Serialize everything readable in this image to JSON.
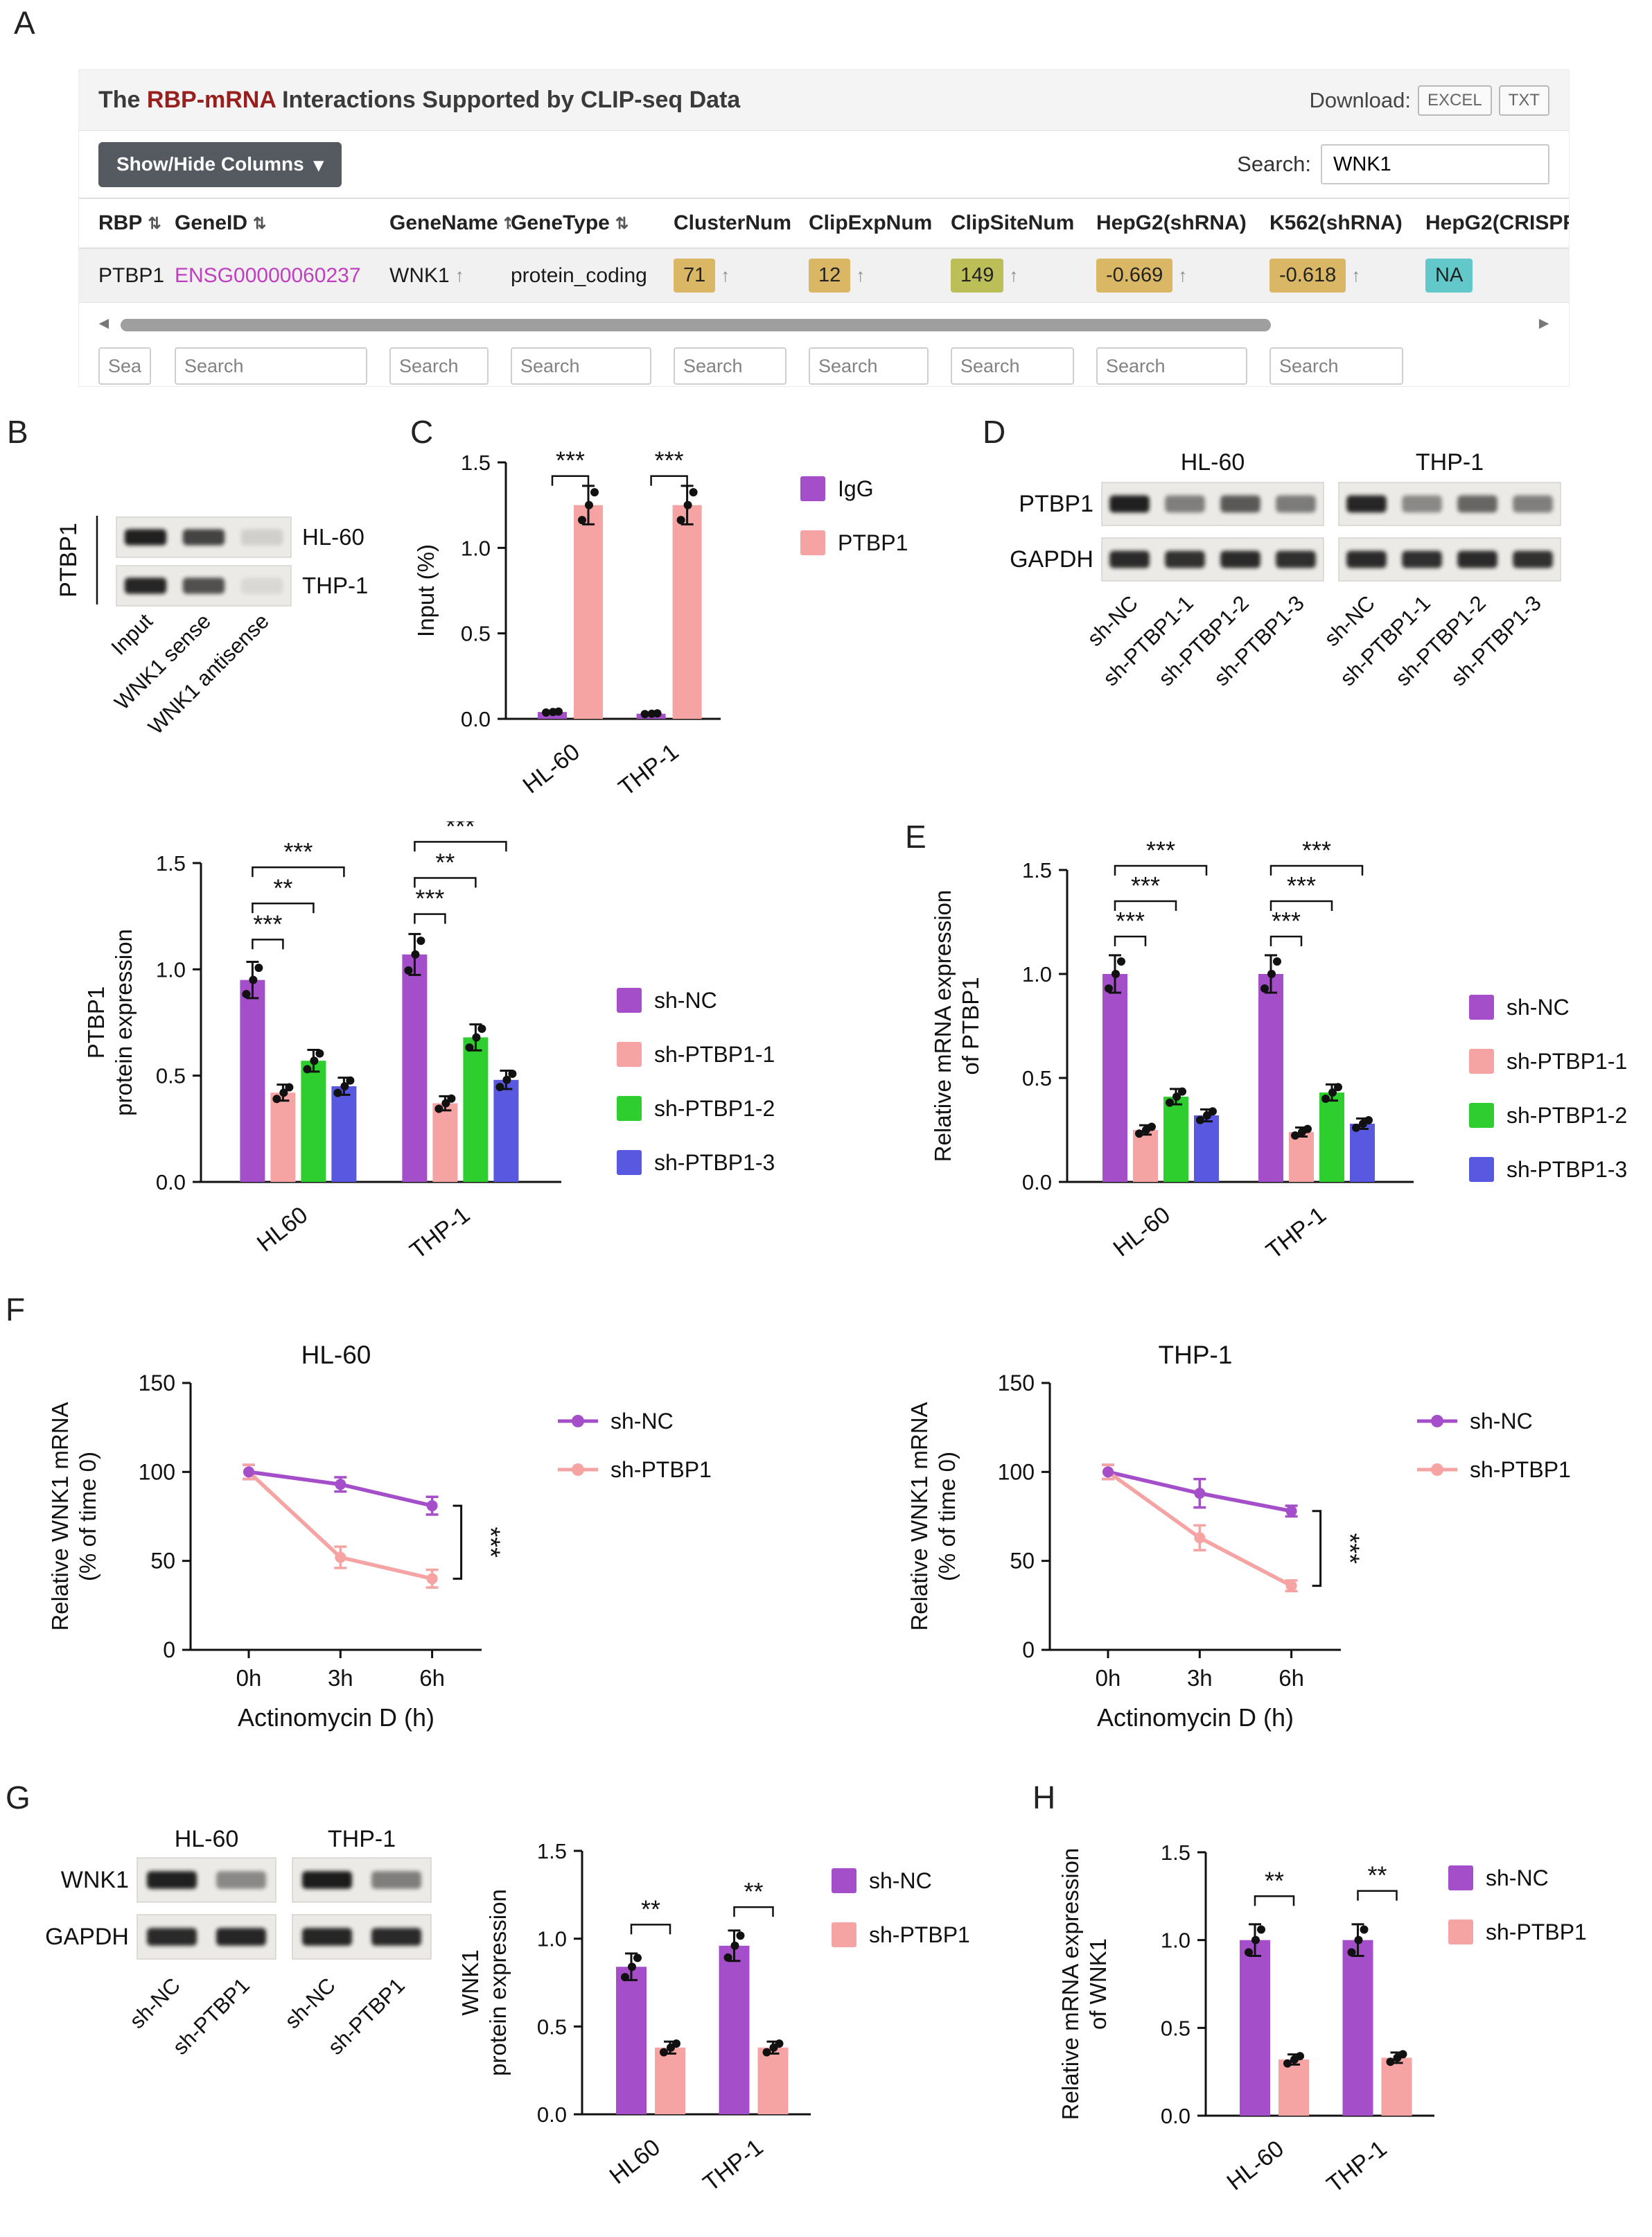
{
  "panel_labels": {
    "A": "A",
    "B": "B",
    "C": "C",
    "D": "D",
    "E": "E",
    "F": "F",
    "G": "G",
    "H": "H"
  },
  "panelA": {
    "title_pre": "The ",
    "title_em": "RBP-mRNA",
    "title_post": " Interactions Supported by CLIP-seq Data",
    "download_label": "Download:",
    "download_excel": "EXCEL",
    "download_txt": "TXT",
    "show_hide_label": "Show/Hide Columns",
    "caret": "▾",
    "search_label": "Search:",
    "search_value": "WNK1",
    "search_placeholder": "Search",
    "sort_up": "↑",
    "scroll_left": "◄",
    "scroll_right": "►",
    "columns": [
      {
        "label": "RBP",
        "sort": "⇅"
      },
      {
        "label": "GeneID",
        "sort": "⇅"
      },
      {
        "label": "GeneName",
        "sort": "⇅"
      },
      {
        "label": "GeneType",
        "sort": "⇅"
      },
      {
        "label": "ClusterNum",
        "sort": ""
      },
      {
        "label": "ClipExpNum",
        "sort": ""
      },
      {
        "label": "ClipSiteNum",
        "sort": ""
      },
      {
        "label": "HepG2(shRNA)",
        "sort": ""
      },
      {
        "label": "K562(shRNA)",
        "sort": ""
      },
      {
        "label": "HepG2(CRISPR",
        "sort": ""
      }
    ],
    "row": {
      "rbp": "PTBP1",
      "gene_id": "ENSG00000060237",
      "gene_name": "WNK1",
      "gene_type": "protein_coding",
      "cluster_num": "71",
      "clip_exp_num": "12",
      "clip_site_num": "149",
      "hepg2_shrna": "-0.669",
      "k562_shrna": "-0.618",
      "hepg2_crispr": "NA"
    }
  },
  "blots": {
    "blotB": {
      "side_label": "PTBP1",
      "strip_labels": [
        "HL-60",
        "THP-1"
      ],
      "lane_labels": [
        "Input",
        "WNK1 sense",
        "WNK1 antisense"
      ]
    },
    "blotD": {
      "headers": [
        "HL-60",
        "THP-1"
      ],
      "row_labels": [
        "PTBP1",
        "GAPDH"
      ],
      "lane_labels": [
        "sh-NC",
        "sh-PTBP1-1",
        "sh-PTBP1-2",
        "sh-PTBP1-3"
      ]
    },
    "blotG": {
      "headers": [
        "HL-60",
        "THP-1"
      ],
      "row_labels": [
        "WNK1",
        "GAPDH"
      ],
      "lane_labels": [
        "sh-NC",
        "sh-PTBP1"
      ]
    }
  },
  "chart_data": [
    {
      "id": "chartB",
      "panel": "B",
      "type": "bar",
      "categories": [
        "HL60",
        "THP-1"
      ],
      "series": [
        {
          "name": "sh-NC",
          "color": "#a44fc9",
          "values": [
            0.95,
            1.07
          ]
        },
        {
          "name": "sh-PTBP1-1",
          "color": "#f5a3a3",
          "values": [
            0.42,
            0.37
          ]
        },
        {
          "name": "sh-PTBP1-2",
          "color": "#2fce2f",
          "values": [
            0.57,
            0.68
          ]
        },
        {
          "name": "sh-PTBP1-3",
          "color": "#5858e0",
          "values": [
            0.45,
            0.48
          ]
        }
      ],
      "ylabel_lines": [
        "PTBP1",
        "protein expression"
      ],
      "ylim": [
        0,
        1.5
      ],
      "yticks": [
        0,
        0.5,
        1,
        1.5
      ],
      "sig": [
        {
          "g": 0,
          "a": 0,
          "b": 1,
          "y": 1.14,
          "label": "***"
        },
        {
          "g": 0,
          "a": 0,
          "b": 2,
          "y": 1.31,
          "label": "**"
        },
        {
          "g": 0,
          "a": 0,
          "b": 3,
          "y": 1.48,
          "label": "***"
        },
        {
          "g": 1,
          "a": 0,
          "b": 1,
          "y": 1.26,
          "label": "***"
        },
        {
          "g": 1,
          "a": 0,
          "b": 2,
          "y": 1.43,
          "label": "**"
        },
        {
          "g": 1,
          "a": 0,
          "b": 3,
          "y": 1.6,
          "label": "***"
        }
      ]
    },
    {
      "id": "chartC",
      "panel": "C",
      "type": "bar",
      "categories": [
        "HL-60",
        "THP-1"
      ],
      "series": [
        {
          "name": "IgG",
          "color": "#a44fc9",
          "values": [
            0.04,
            0.03
          ]
        },
        {
          "name": "PTBP1",
          "color": "#f5a3a3",
          "values": [
            1.25,
            1.25
          ]
        }
      ],
      "ylabel_lines": [
        "Input (%)"
      ],
      "ylim": [
        0,
        1.5
      ],
      "yticks": [
        0,
        0.5,
        1,
        1.5
      ],
      "sig": [
        {
          "g": 0,
          "a": 0,
          "b": 1,
          "y": 1.42,
          "label": "***"
        },
        {
          "g": 1,
          "a": 0,
          "b": 1,
          "y": 1.42,
          "label": "***"
        }
      ]
    },
    {
      "id": "chartE",
      "panel": "E",
      "type": "bar",
      "categories": [
        "HL-60",
        "THP-1"
      ],
      "series": [
        {
          "name": "sh-NC",
          "color": "#a44fc9",
          "values": [
            1.0,
            1.0
          ]
        },
        {
          "name": "sh-PTBP1-1",
          "color": "#f5a3a3",
          "values": [
            0.25,
            0.24
          ]
        },
        {
          "name": "sh-PTBP1-2",
          "color": "#2fce2f",
          "values": [
            0.41,
            0.43
          ]
        },
        {
          "name": "sh-PTBP1-3",
          "color": "#5858e0",
          "values": [
            0.32,
            0.28
          ]
        }
      ],
      "ylabel_lines": [
        "Relative mRNA expression",
        "of PTBP1"
      ],
      "ylim": [
        0,
        1.5
      ],
      "yticks": [
        0,
        0.5,
        1,
        1.5
      ],
      "sig": [
        {
          "g": 0,
          "a": 0,
          "b": 1,
          "y": 1.18,
          "label": "***"
        },
        {
          "g": 0,
          "a": 0,
          "b": 2,
          "y": 1.35,
          "label": "***"
        },
        {
          "g": 0,
          "a": 0,
          "b": 3,
          "y": 1.52,
          "label": "***"
        },
        {
          "g": 1,
          "a": 0,
          "b": 1,
          "y": 1.18,
          "label": "***"
        },
        {
          "g": 1,
          "a": 0,
          "b": 2,
          "y": 1.35,
          "label": "***"
        },
        {
          "g": 1,
          "a": 0,
          "b": 3,
          "y": 1.52,
          "label": "***"
        }
      ]
    },
    {
      "id": "chartF1",
      "panel": "F",
      "type": "line",
      "title": "HL-60",
      "x": [
        "0h",
        "3h",
        "6h"
      ],
      "series": [
        {
          "name": "sh-NC",
          "color": "#a44fc9",
          "values": [
            100,
            93,
            81
          ],
          "err": [
            4,
            4,
            5
          ]
        },
        {
          "name": "sh-PTBP1",
          "color": "#f5a3a3",
          "values": [
            100,
            52,
            40
          ],
          "err": [
            4,
            6,
            5
          ]
        }
      ],
      "ylabel_lines": [
        "Relative WNK1 mRNA",
        "(% of time 0)"
      ],
      "xlabel": "Actinomycin D (h)",
      "ylim": [
        0,
        150
      ],
      "yticks": [
        0,
        50,
        100,
        150
      ],
      "sig": "***"
    },
    {
      "id": "chartF2",
      "panel": "F",
      "type": "line",
      "title": "THP-1",
      "x": [
        "0h",
        "3h",
        "6h"
      ],
      "series": [
        {
          "name": "sh-NC",
          "color": "#a44fc9",
          "values": [
            100,
            88,
            78
          ],
          "err": [
            4,
            8,
            3
          ]
        },
        {
          "name": "sh-PTBP1",
          "color": "#f5a3a3",
          "values": [
            100,
            63,
            36
          ],
          "err": [
            4,
            7,
            3
          ]
        }
      ],
      "ylabel_lines": [
        "Relative WNK1 mRNA",
        "(% of time 0)"
      ],
      "xlabel": "Actinomycin D (h)",
      "ylim": [
        0,
        150
      ],
      "yticks": [
        0,
        50,
        100,
        150
      ],
      "sig": "***"
    },
    {
      "id": "chartG",
      "panel": "G",
      "type": "bar",
      "categories": [
        "HL60",
        "THP-1"
      ],
      "series": [
        {
          "name": "sh-NC",
          "color": "#a44fc9",
          "values": [
            0.84,
            0.96
          ]
        },
        {
          "name": "sh-PTBP1",
          "color": "#f5a3a3",
          "values": [
            0.38,
            0.38
          ]
        }
      ],
      "ylabel_lines": [
        "WNK1",
        "protein expression"
      ],
      "ylim": [
        0,
        1.5
      ],
      "yticks": [
        0,
        0.5,
        1,
        1.5
      ],
      "sig": [
        {
          "g": 0,
          "a": 0,
          "b": 1,
          "y": 1.08,
          "label": "**"
        },
        {
          "g": 1,
          "a": 0,
          "b": 1,
          "y": 1.18,
          "label": "**"
        }
      ]
    },
    {
      "id": "chartH",
      "panel": "H",
      "type": "bar",
      "categories": [
        "HL-60",
        "THP-1"
      ],
      "series": [
        {
          "name": "sh-NC",
          "color": "#a44fc9",
          "values": [
            1.0,
            1.0
          ]
        },
        {
          "name": "sh-PTBP1",
          "color": "#f5a3a3",
          "values": [
            0.32,
            0.33
          ]
        }
      ],
      "ylabel_lines": [
        "Relative mRNA expression",
        "of WNK1"
      ],
      "ylim": [
        0,
        1.5
      ],
      "yticks": [
        0,
        0.5,
        1,
        1.5
      ],
      "sig": [
        {
          "g": 0,
          "a": 0,
          "b": 1,
          "y": 1.25,
          "label": "**"
        },
        {
          "g": 1,
          "a": 0,
          "b": 1,
          "y": 1.28,
          "label": "**"
        }
      ]
    }
  ]
}
